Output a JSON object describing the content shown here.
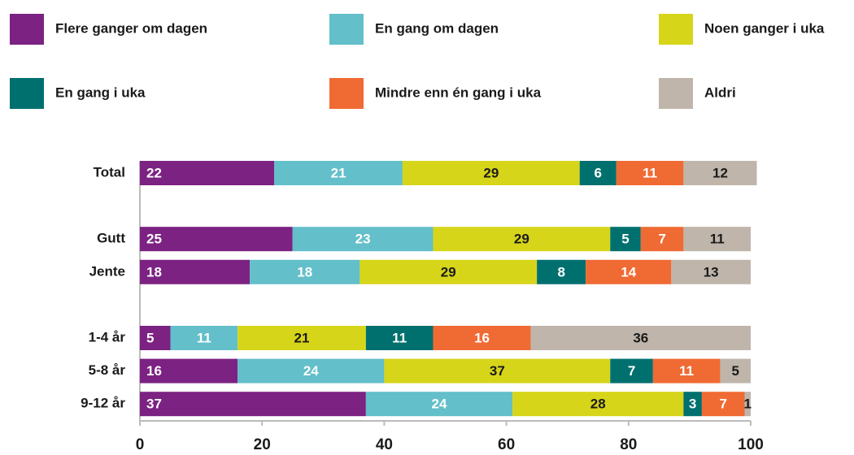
{
  "chart_data": {
    "type": "stacked_barh",
    "categories": [
      "Total",
      null,
      "Gutt",
      "Jente",
      null,
      "1-4 år",
      "5-8 år",
      "9-12 år"
    ],
    "series": [
      {
        "name": "Flere ganger om dagen",
        "color": "#7b2282",
        "label_color": "#ffffff",
        "values": [
          22,
          null,
          25,
          18,
          null,
          5,
          16,
          37
        ]
      },
      {
        "name": "En gang om dagen",
        "color": "#63bfc9",
        "label_color": "#ffffff",
        "values": [
          21,
          null,
          23,
          18,
          null,
          11,
          24,
          24
        ]
      },
      {
        "name": "Noen ganger i uka",
        "color": "#d6d51a",
        "label_color": "#1a1a1a",
        "values": [
          29,
          null,
          29,
          29,
          null,
          21,
          37,
          28
        ]
      },
      {
        "name": "En gang i uka",
        "color": "#00706f",
        "label_color": "#ffffff",
        "values": [
          6,
          null,
          5,
          8,
          null,
          11,
          7,
          3
        ]
      },
      {
        "name": "Mindre enn én gang i uka",
        "color": "#f06a33",
        "label_color": "#ffffff",
        "values": [
          11,
          null,
          7,
          14,
          null,
          16,
          11,
          7
        ]
      },
      {
        "name": "Aldri",
        "color": "#bfb5aa",
        "label_color": "#1a1a1a",
        "values": [
          12,
          null,
          11,
          13,
          null,
          36,
          5,
          1
        ]
      }
    ],
    "xlim": [
      0,
      100
    ],
    "xticks": [
      0,
      20,
      40,
      60,
      80,
      100
    ],
    "legend": "top"
  }
}
